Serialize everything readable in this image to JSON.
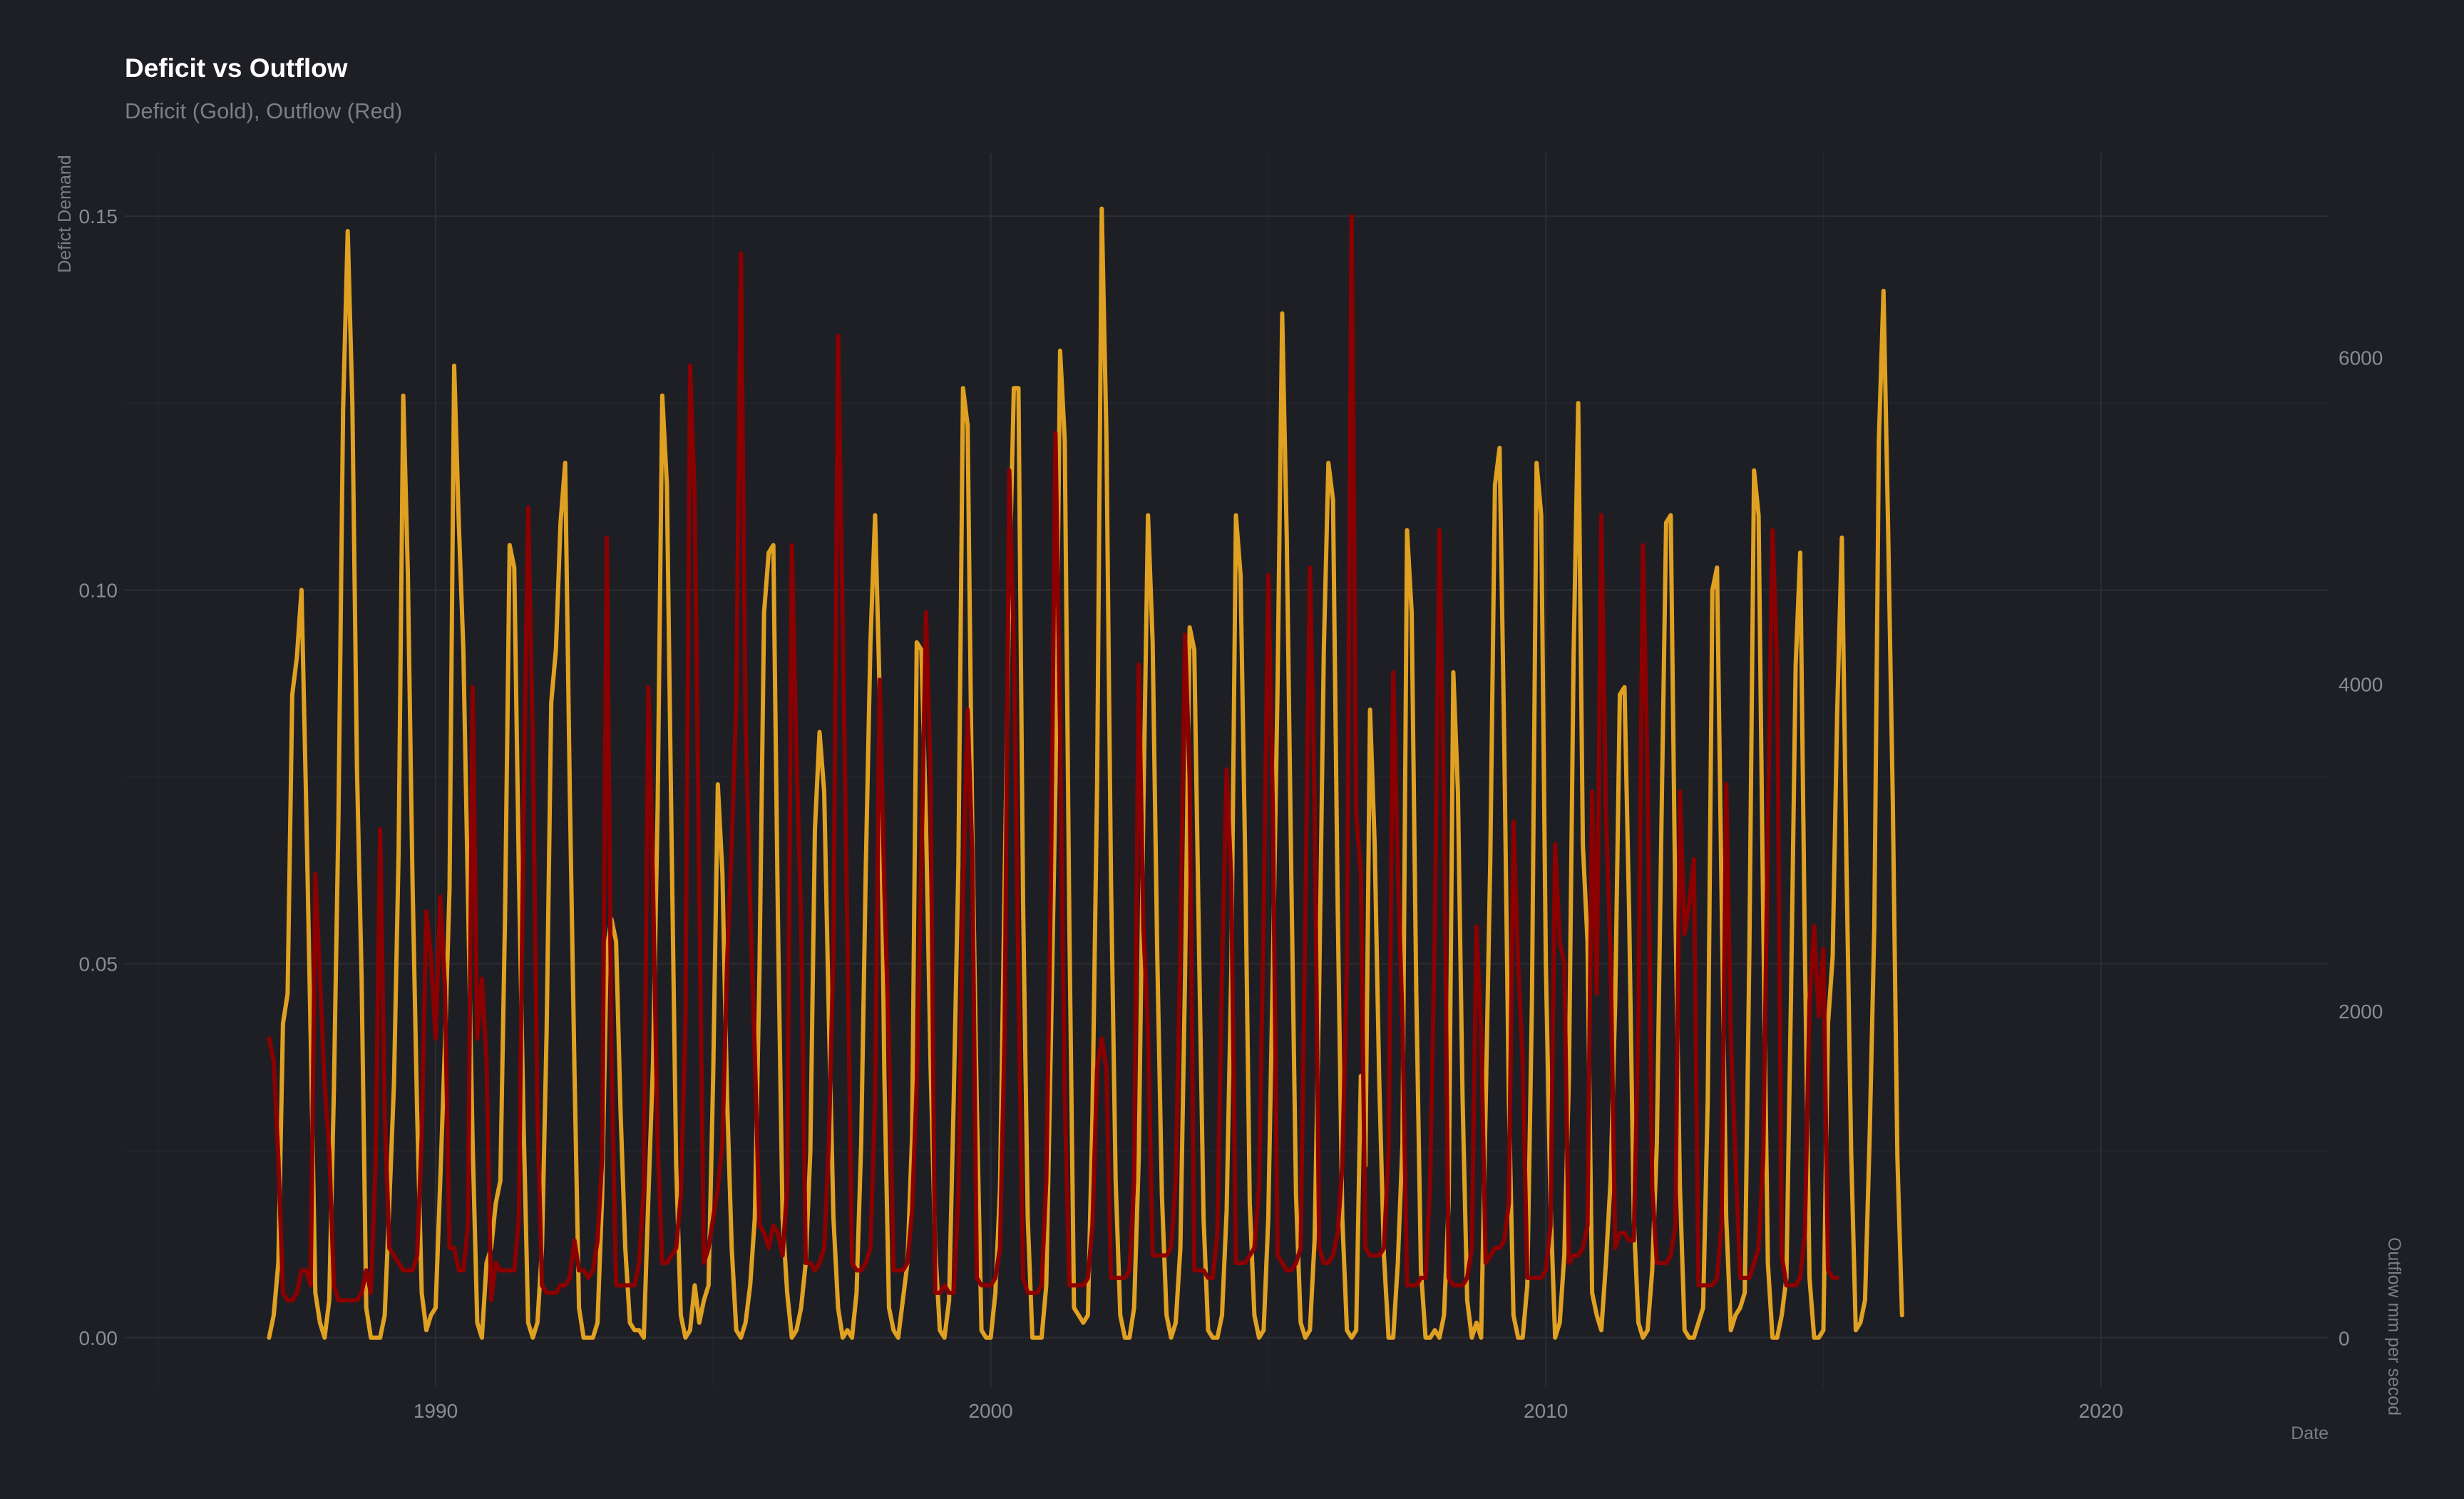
{
  "chart_data": {
    "type": "line",
    "title": "Deficit vs Outflow",
    "subtitle": "Deficit (Gold), Outflow (Red)",
    "xlabel": "Date",
    "ylabel_left": "Defict Demand",
    "ylabel_right": "Outflow mm per secod",
    "xlim": [
      1984.4,
      2024.1
    ],
    "ylim_left": [
      -0.0066,
      0.1584
    ],
    "ylim_right": [
      -300,
      7250
    ],
    "x_ticks": [
      1990,
      2000,
      2010,
      2020
    ],
    "y_left_ticks": [
      0.0,
      0.05,
      0.1,
      0.15
    ],
    "y_left_tick_labels": [
      "0.00",
      "0.05",
      "0.10",
      "0.15"
    ],
    "y_right_ticks": [
      0,
      2000,
      4000,
      6000
    ],
    "y_right_tick_labels": [
      "0",
      "2000",
      "4000",
      "6000"
    ],
    "grid": true,
    "legend": "none",
    "colors": {
      "background": "#1e1f24",
      "deficit": "#e0a122",
      "outflow": "#8b0000"
    },
    "series": [
      {
        "key": "deficit",
        "axis": "left",
        "color": "#e0a122",
        "start": 1987.0,
        "step": 0.0833333,
        "values": [
          0.0,
          0.003,
          0.01,
          0.042,
          0.046,
          0.086,
          0.091,
          0.1,
          0.072,
          0.04,
          0.006,
          0.002,
          0.0,
          0.005,
          0.033,
          0.07,
          0.124,
          0.148,
          0.125,
          0.076,
          0.048,
          0.004,
          0.0,
          0.0,
          0.0,
          0.003,
          0.018,
          0.034,
          0.065,
          0.126,
          0.102,
          0.061,
          0.03,
          0.006,
          0.001,
          0.003,
          0.004,
          0.021,
          0.039,
          0.06,
          0.13,
          0.109,
          0.092,
          0.059,
          0.026,
          0.002,
          0.0,
          0.01,
          0.012,
          0.018,
          0.021,
          0.056,
          0.106,
          0.103,
          0.062,
          0.029,
          0.002,
          0.0,
          0.002,
          0.012,
          0.041,
          0.085,
          0.092,
          0.109,
          0.117,
          0.073,
          0.036,
          0.004,
          0.0,
          0.0,
          0.0,
          0.002,
          0.019,
          0.052,
          0.056,
          0.053,
          0.03,
          0.012,
          0.002,
          0.001,
          0.001,
          0.0,
          0.019,
          0.037,
          0.071,
          0.126,
          0.114,
          0.067,
          0.023,
          0.003,
          0.0,
          0.001,
          0.007,
          0.002,
          0.005,
          0.007,
          0.035,
          0.074,
          0.062,
          0.032,
          0.012,
          0.001,
          0.0,
          0.002,
          0.007,
          0.016,
          0.049,
          0.097,
          0.105,
          0.106,
          0.056,
          0.016,
          0.006,
          0.0,
          0.001,
          0.004,
          0.01,
          0.025,
          0.068,
          0.081,
          0.073,
          0.043,
          0.016,
          0.004,
          0.0,
          0.001,
          0.0,
          0.006,
          0.026,
          0.063,
          0.093,
          0.11,
          0.086,
          0.035,
          0.004,
          0.001,
          0.0,
          0.005,
          0.01,
          0.027,
          0.093,
          0.092,
          0.069,
          0.036,
          0.012,
          0.001,
          0.0,
          0.005,
          0.032,
          0.063,
          0.127,
          0.122,
          0.069,
          0.031,
          0.001,
          0.0,
          0.0,
          0.006,
          0.02,
          0.061,
          0.1,
          0.127,
          0.127,
          0.058,
          0.016,
          0.0,
          0.0,
          0.0,
          0.007,
          0.039,
          0.074,
          0.132,
          0.12,
          0.055,
          0.004,
          0.003,
          0.002,
          0.003,
          0.03,
          0.074,
          0.151,
          0.121,
          0.061,
          0.021,
          0.003,
          0.0,
          0.0,
          0.004,
          0.024,
          0.071,
          0.11,
          0.093,
          0.051,
          0.019,
          0.003,
          0.0,
          0.002,
          0.012,
          0.048,
          0.095,
          0.092,
          0.053,
          0.016,
          0.001,
          0.0,
          0.0,
          0.003,
          0.017,
          0.049,
          0.11,
          0.102,
          0.064,
          0.018,
          0.003,
          0.0,
          0.001,
          0.016,
          0.05,
          0.087,
          0.137,
          0.107,
          0.061,
          0.019,
          0.002,
          0.0,
          0.001,
          0.013,
          0.047,
          0.092,
          0.117,
          0.112,
          0.058,
          0.016,
          0.001,
          0.0,
          0.001,
          0.035,
          0.023,
          0.084,
          0.066,
          0.034,
          0.011,
          0.0,
          0.0,
          0.01,
          0.026,
          0.108,
          0.097,
          0.046,
          0.009,
          0.0,
          0.0,
          0.001,
          0.0,
          0.003,
          0.018,
          0.089,
          0.073,
          0.032,
          0.005,
          0.0,
          0.002,
          0.0,
          0.031,
          0.064,
          0.114,
          0.119,
          0.08,
          0.032,
          0.003,
          0.0,
          0.0,
          0.007,
          0.045,
          0.117,
          0.11,
          0.05,
          0.018,
          0.0,
          0.002,
          0.011,
          0.035,
          0.091,
          0.125,
          0.066,
          0.053,
          0.006,
          0.003,
          0.001,
          0.01,
          0.021,
          0.045,
          0.086,
          0.087,
          0.057,
          0.016,
          0.002,
          0.0,
          0.001,
          0.009,
          0.026,
          0.069,
          0.109,
          0.11,
          0.057,
          0.02,
          0.001,
          0.0,
          0.0,
          0.002,
          0.004,
          0.032,
          0.1,
          0.103,
          0.059,
          0.016,
          0.001,
          0.003,
          0.004,
          0.006,
          0.052,
          0.116,
          0.11,
          0.056,
          0.01,
          0.0,
          0.0,
          0.003,
          0.008,
          0.046,
          0.09,
          0.105,
          0.052,
          0.008,
          0.0,
          0.0,
          0.001,
          0.042,
          0.051,
          0.084,
          0.107,
          0.063,
          0.025,
          0.001,
          0.002,
          0.005,
          0.027,
          0.055,
          0.12,
          0.14,
          0.108,
          0.072,
          0.024,
          0.003
        ]
      },
      {
        "key": "outflow",
        "axis": "left",
        "color": "#8b0000",
        "start": 1987.0,
        "step": 0.0833333,
        "values": [
          0.04,
          0.037,
          0.024,
          0.006,
          0.005,
          0.005,
          0.006,
          0.009,
          0.009,
          0.007,
          0.062,
          0.048,
          0.034,
          0.025,
          0.007,
          0.005,
          0.005,
          0.005,
          0.005,
          0.005,
          0.006,
          0.009,
          0.006,
          0.023,
          0.068,
          0.03,
          0.012,
          0.011,
          0.01,
          0.009,
          0.009,
          0.009,
          0.011,
          0.027,
          0.057,
          0.051,
          0.04,
          0.059,
          0.047,
          0.012,
          0.012,
          0.009,
          0.009,
          0.015,
          0.087,
          0.04,
          0.048,
          0.037,
          0.005,
          0.01,
          0.009,
          0.009,
          0.009,
          0.009,
          0.016,
          0.07,
          0.111,
          0.08,
          0.03,
          0.007,
          0.006,
          0.006,
          0.006,
          0.007,
          0.007,
          0.008,
          0.013,
          0.009,
          0.009,
          0.008,
          0.009,
          0.013,
          0.024,
          0.107,
          0.038,
          0.007,
          0.007,
          0.007,
          0.007,
          0.007,
          0.01,
          0.02,
          0.087,
          0.06,
          0.026,
          0.01,
          0.01,
          0.011,
          0.012,
          0.019,
          0.042,
          0.13,
          0.112,
          0.06,
          0.01,
          0.012,
          0.016,
          0.02,
          0.026,
          0.05,
          0.066,
          0.085,
          0.145,
          0.083,
          0.058,
          0.038,
          0.015,
          0.014,
          0.012,
          0.015,
          0.014,
          0.011,
          0.02,
          0.106,
          0.078,
          0.056,
          0.01,
          0.01,
          0.009,
          0.01,
          0.012,
          0.026,
          0.052,
          0.134,
          0.095,
          0.054,
          0.01,
          0.009,
          0.009,
          0.01,
          0.012,
          0.032,
          0.088,
          0.06,
          0.039,
          0.009,
          0.009,
          0.009,
          0.01,
          0.017,
          0.034,
          0.063,
          0.097,
          0.075,
          0.006,
          0.006,
          0.007,
          0.006,
          0.006,
          0.019,
          0.059,
          0.084,
          0.065,
          0.008,
          0.007,
          0.007,
          0.007,
          0.008,
          0.012,
          0.041,
          0.116,
          0.093,
          0.048,
          0.008,
          0.006,
          0.006,
          0.006,
          0.007,
          0.021,
          0.06,
          0.121,
          0.081,
          0.032,
          0.007,
          0.007,
          0.007,
          0.007,
          0.008,
          0.015,
          0.036,
          0.04,
          0.036,
          0.008,
          0.008,
          0.008,
          0.008,
          0.009,
          0.021,
          0.09,
          0.055,
          0.041,
          0.011,
          0.011,
          0.011,
          0.011,
          0.012,
          0.021,
          0.052,
          0.094,
          0.075,
          0.009,
          0.009,
          0.009,
          0.008,
          0.008,
          0.014,
          0.049,
          0.076,
          0.061,
          0.01,
          0.01,
          0.01,
          0.011,
          0.012,
          0.02,
          0.056,
          0.102,
          0.07,
          0.011,
          0.01,
          0.009,
          0.009,
          0.01,
          0.012,
          0.056,
          0.103,
          0.072,
          0.012,
          0.01,
          0.01,
          0.011,
          0.014,
          0.023,
          0.05,
          0.15,
          0.07,
          0.062,
          0.012,
          0.011,
          0.011,
          0.011,
          0.012,
          0.025,
          0.089,
          0.063,
          0.042,
          0.007,
          0.007,
          0.007,
          0.008,
          0.008,
          0.021,
          0.055,
          0.108,
          0.071,
          0.008,
          0.007,
          0.007,
          0.007,
          0.008,
          0.012,
          0.055,
          0.041,
          0.01,
          0.011,
          0.012,
          0.012,
          0.013,
          0.018,
          0.069,
          0.05,
          0.037,
          0.008,
          0.008,
          0.008,
          0.008,
          0.009,
          0.015,
          0.066,
          0.053,
          0.05,
          0.01,
          0.011,
          0.011,
          0.012,
          0.015,
          0.073,
          0.046,
          0.11,
          0.07,
          0.051,
          0.012,
          0.014,
          0.014,
          0.013,
          0.013,
          0.042,
          0.106,
          0.075,
          0.02,
          0.01,
          0.01,
          0.01,
          0.011,
          0.015,
          0.073,
          0.054,
          0.058,
          0.064,
          0.007,
          0.007,
          0.007,
          0.007,
          0.008,
          0.015,
          0.074,
          0.04,
          0.024,
          0.008,
          0.008,
          0.008,
          0.01,
          0.012,
          0.024,
          0.068,
          0.108,
          0.09,
          0.011,
          0.007,
          0.007,
          0.007,
          0.008,
          0.014,
          0.045,
          0.055,
          0.043,
          0.052,
          0.009,
          0.008,
          0.008
        ]
      }
    ]
  }
}
